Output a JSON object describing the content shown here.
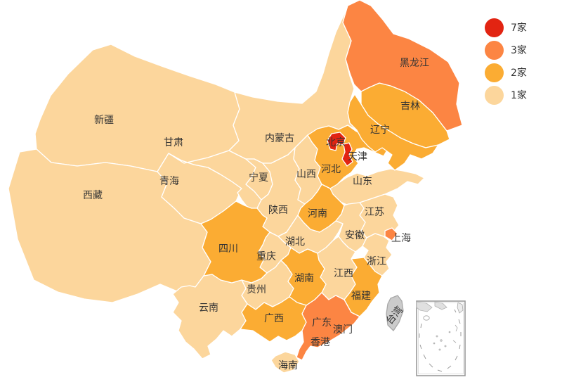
{
  "chart_data": {
    "type": "heatmap",
    "subtype": "china-choropleth-map",
    "title": "",
    "unit": "家",
    "legend_position": "top-right",
    "legend": [
      {
        "label": "7家",
        "color": "#e22412"
      },
      {
        "label": "3家",
        "color": "#fc8543"
      },
      {
        "label": "2家",
        "color": "#fbac33"
      },
      {
        "label": "1家",
        "color": "#fcd69c"
      }
    ],
    "no_data_color": "#cbcbcb",
    "border_color": "#ffffff",
    "label_color": "#333333",
    "regions": [
      {
        "id": "xinjiang",
        "name": "新疆",
        "bucket": "1家"
      },
      {
        "id": "xizang",
        "name": "西藏",
        "bucket": "1家"
      },
      {
        "id": "qinghai",
        "name": "青海",
        "bucket": "1家"
      },
      {
        "id": "gansu",
        "name": "甘肃",
        "bucket": "1家"
      },
      {
        "id": "neimenggu",
        "name": "内蒙古",
        "bucket": "1家"
      },
      {
        "id": "ningxia",
        "name": "宁夏",
        "bucket": "1家"
      },
      {
        "id": "shaanxi",
        "name": "陕西",
        "bucket": "1家"
      },
      {
        "id": "shanxi",
        "name": "山西",
        "bucket": "1家"
      },
      {
        "id": "shandong",
        "name": "山东",
        "bucket": "1家"
      },
      {
        "id": "jiangsu",
        "name": "江苏",
        "bucket": "1家"
      },
      {
        "id": "anhui",
        "name": "安徽",
        "bucket": "1家"
      },
      {
        "id": "zhejiang",
        "name": "浙江",
        "bucket": "1家"
      },
      {
        "id": "hubei",
        "name": "湖北",
        "bucket": "1家"
      },
      {
        "id": "chongqing",
        "name": "重庆",
        "bucket": "1家"
      },
      {
        "id": "jiangxi",
        "name": "江西",
        "bucket": "1家"
      },
      {
        "id": "guizhou",
        "name": "贵州",
        "bucket": "1家"
      },
      {
        "id": "yunnan",
        "name": "云南",
        "bucket": "1家"
      },
      {
        "id": "hainan",
        "name": "海南",
        "bucket": "1家"
      },
      {
        "id": "hebei",
        "name": "河北",
        "bucket": "2家"
      },
      {
        "id": "henan",
        "name": "河南",
        "bucket": "2家"
      },
      {
        "id": "sichuan",
        "name": "四川",
        "bucket": "2家"
      },
      {
        "id": "hunan",
        "name": "湖南",
        "bucket": "2家"
      },
      {
        "id": "fujian",
        "name": "福建",
        "bucket": "2家"
      },
      {
        "id": "guangxi",
        "name": "广西",
        "bucket": "2家"
      },
      {
        "id": "jilin",
        "name": "吉林",
        "bucket": "2家"
      },
      {
        "id": "liaoning",
        "name": "辽宁",
        "bucket": "2家"
      },
      {
        "id": "heilongjiang",
        "name": "黑龙江",
        "bucket": "3家"
      },
      {
        "id": "guangdong",
        "name": "广东",
        "bucket": "3家"
      },
      {
        "id": "shanghai",
        "name": "上海",
        "bucket": "3家"
      },
      {
        "id": "beijing",
        "name": "北京",
        "bucket": "7家"
      },
      {
        "id": "tianjin",
        "name": "天津",
        "bucket": "7家"
      },
      {
        "id": "aomen",
        "name": "澳门",
        "bucket": null
      },
      {
        "id": "xianggang",
        "name": "香港",
        "bucket": null
      },
      {
        "id": "taiwan",
        "name": "台湾",
        "bucket": null
      }
    ],
    "no_data_regions": [
      "台湾"
    ]
  }
}
